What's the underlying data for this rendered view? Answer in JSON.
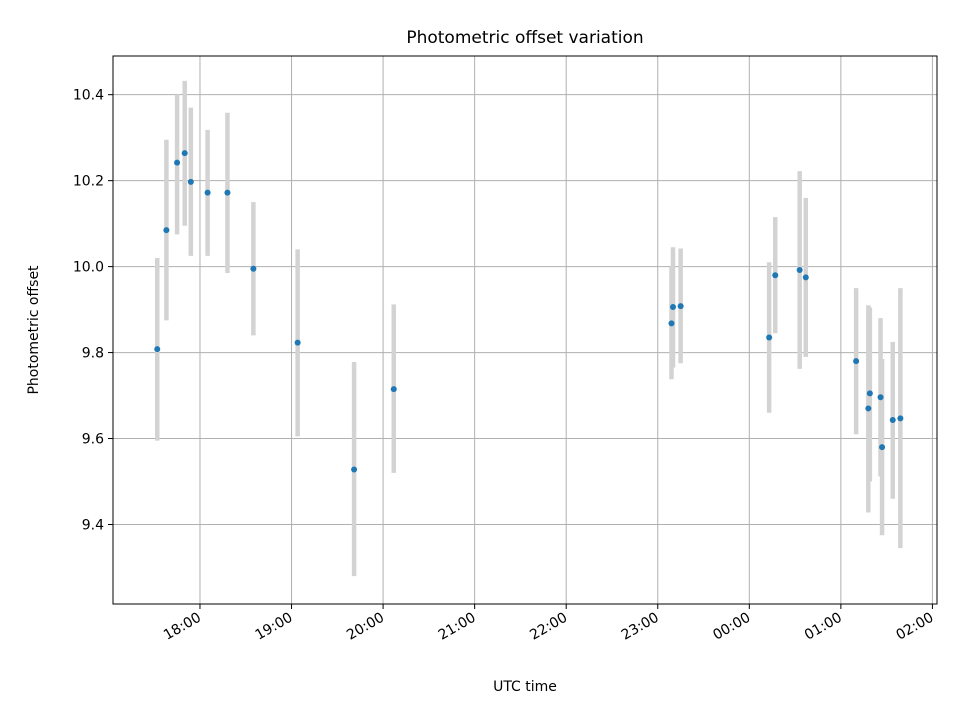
{
  "chart_data": {
    "type": "scatter",
    "title": "Photometric offset variation",
    "xlabel": "UTC time",
    "ylabel": "Photometric offset",
    "grid": true,
    "x_tick_labels": [
      "18:00",
      "19:00",
      "20:00",
      "21:00",
      "22:00",
      "23:00",
      "00:00",
      "01:00",
      "02:00"
    ],
    "x_tick_times": [
      "18:00",
      "19:00",
      "20:00",
      "21:00",
      "22:00",
      "23:00",
      "00:00",
      "01:00",
      "02:00"
    ],
    "y_ticks": [
      9.4,
      9.6,
      9.8,
      10.0,
      10.2,
      10.4
    ],
    "y_tick_labels": [
      "9.4",
      "9.6",
      "9.8",
      "10.0",
      "10.2",
      "10.4"
    ],
    "xlim": [
      "17:03",
      "02:03"
    ],
    "ylim": [
      9.215,
      10.49
    ],
    "colors": {
      "points": "#1f77b4",
      "errorbars": "#d3d3d3",
      "grid": "#b0b0b0"
    },
    "points": [
      {
        "time": "17:32",
        "y": 9.808,
        "low": 9.595,
        "high": 10.02
      },
      {
        "time": "17:38",
        "y": 10.085,
        "low": 9.875,
        "high": 10.295
      },
      {
        "time": "17:45",
        "y": 10.242,
        "low": 10.075,
        "high": 10.4
      },
      {
        "time": "17:50",
        "y": 10.264,
        "low": 10.095,
        "high": 10.432
      },
      {
        "time": "17:54",
        "y": 10.197,
        "low": 10.025,
        "high": 10.37
      },
      {
        "time": "18:05",
        "y": 10.172,
        "low": 10.025,
        "high": 10.318
      },
      {
        "time": "18:18",
        "y": 10.172,
        "low": 9.985,
        "high": 10.358
      },
      {
        "time": "18:35",
        "y": 9.995,
        "low": 9.84,
        "high": 10.15
      },
      {
        "time": "19:04",
        "y": 9.823,
        "low": 9.605,
        "high": 10.04
      },
      {
        "time": "19:41",
        "y": 9.528,
        "low": 9.28,
        "high": 9.778
      },
      {
        "time": "20:07",
        "y": 9.715,
        "low": 9.52,
        "high": 9.912
      },
      {
        "time": "23:09",
        "y": 9.868,
        "low": 9.738,
        "high": 10.0
      },
      {
        "time": "23:10",
        "y": 9.906,
        "low": 9.765,
        "high": 10.045
      },
      {
        "time": "23:15",
        "y": 9.908,
        "low": 9.775,
        "high": 10.042
      },
      {
        "time": "00:13",
        "y": 9.835,
        "low": 9.66,
        "high": 10.01
      },
      {
        "time": "00:17",
        "y": 9.98,
        "low": 9.845,
        "high": 10.115
      },
      {
        "time": "00:33",
        "y": 9.992,
        "low": 9.762,
        "high": 10.222
      },
      {
        "time": "00:37",
        "y": 9.975,
        "low": 9.79,
        "high": 10.16
      },
      {
        "time": "01:10",
        "y": 9.78,
        "low": 9.61,
        "high": 9.95
      },
      {
        "time": "01:18",
        "y": 9.67,
        "low": 9.428,
        "high": 9.91
      },
      {
        "time": "01:19",
        "y": 9.705,
        "low": 9.5,
        "high": 9.905
      },
      {
        "time": "01:26",
        "y": 9.696,
        "low": 9.512,
        "high": 9.88
      },
      {
        "time": "01:27",
        "y": 9.58,
        "low": 9.375,
        "high": 9.785
      },
      {
        "time": "01:34",
        "y": 9.643,
        "low": 9.46,
        "high": 9.825
      },
      {
        "time": "01:39",
        "y": 9.647,
        "low": 9.345,
        "high": 9.95
      }
    ]
  }
}
